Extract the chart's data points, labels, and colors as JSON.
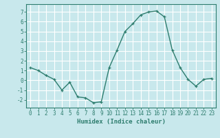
{
  "x": [
    0,
    1,
    2,
    3,
    4,
    5,
    6,
    7,
    8,
    9,
    10,
    11,
    12,
    13,
    14,
    15,
    16,
    17,
    18,
    19,
    20,
    21,
    22,
    23
  ],
  "y": [
    1.3,
    1.0,
    0.5,
    0.1,
    -1.0,
    -0.2,
    -1.7,
    -1.8,
    -2.3,
    -2.2,
    1.3,
    3.1,
    5.0,
    5.8,
    6.7,
    7.0,
    7.1,
    6.5,
    3.1,
    1.3,
    0.1,
    -0.6,
    0.1,
    0.2
  ],
  "line_color": "#2e7d6e",
  "marker": "+",
  "bg_color": "#c8e8ec",
  "grid_color": "#ffffff",
  "xlabel": "Humidex (Indice chaleur)",
  "ylim": [
    -2.8,
    7.8
  ],
  "xlim": [
    -0.5,
    23.5
  ],
  "yticks": [
    -2,
    -1,
    0,
    1,
    2,
    3,
    4,
    5,
    6,
    7
  ],
  "xticks": [
    0,
    1,
    2,
    3,
    4,
    5,
    6,
    7,
    8,
    9,
    10,
    11,
    12,
    13,
    14,
    15,
    16,
    17,
    18,
    19,
    20,
    21,
    22,
    23
  ],
  "xlabel_fontsize": 6.5,
  "tick_fontsize": 5.5,
  "line_width": 1.0,
  "marker_size": 3.5,
  "axis_color": "#2e7d6e",
  "tick_color": "#2e7d6e",
  "label_color": "#2e7d6e"
}
